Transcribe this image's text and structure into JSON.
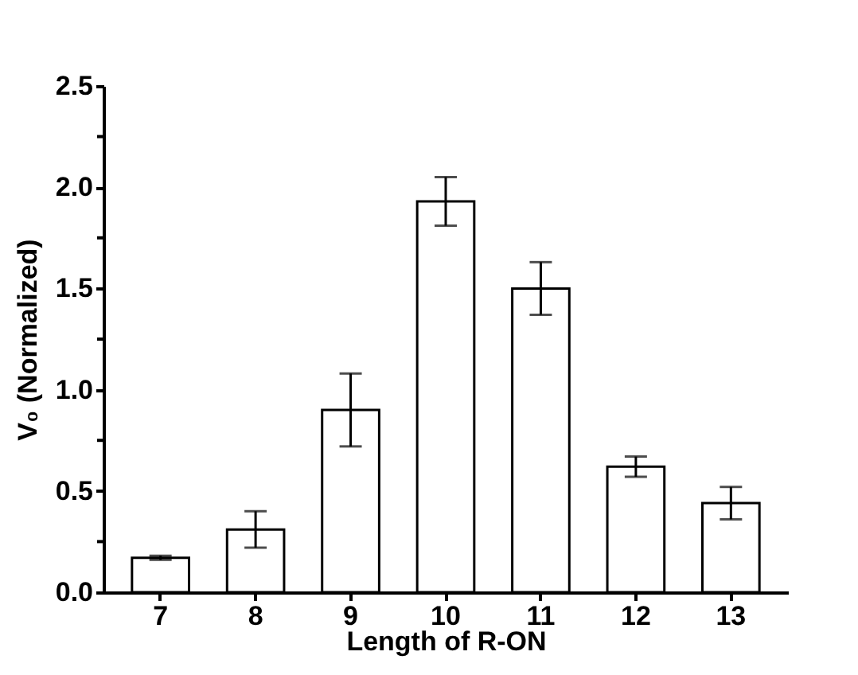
{
  "chart_data": {
    "type": "bar",
    "xlabel": "Length of R-ON",
    "ylabel": "V₀ (Normalized)",
    "categories": [
      "7",
      "8",
      "9",
      "10",
      "11",
      "12",
      "13"
    ],
    "values": [
      0.17,
      0.31,
      0.9,
      1.93,
      1.5,
      0.62,
      0.44
    ],
    "errors": [
      0.01,
      0.09,
      0.18,
      0.12,
      0.13,
      0.05,
      0.08
    ],
    "color": "#ffffff",
    "ylim": [
      0,
      2.5
    ],
    "yticks": [
      {
        "value": 0,
        "label": "0.0"
      },
      {
        "value": 0.25,
        "label": null
      },
      {
        "value": 0.5,
        "label": "0.5"
      },
      {
        "value": 0.75,
        "label": null
      },
      {
        "value": 1,
        "label": "1.0"
      },
      {
        "value": 1.25,
        "label": null
      },
      {
        "value": 1.5,
        "label": "1.5"
      },
      {
        "value": 1.75,
        "label": null
      },
      {
        "value": 2,
        "label": "2.0"
      },
      {
        "value": 2.25,
        "label": null
      },
      {
        "value": 2.5,
        "label": "2.5"
      }
    ],
    "grid": false
  }
}
